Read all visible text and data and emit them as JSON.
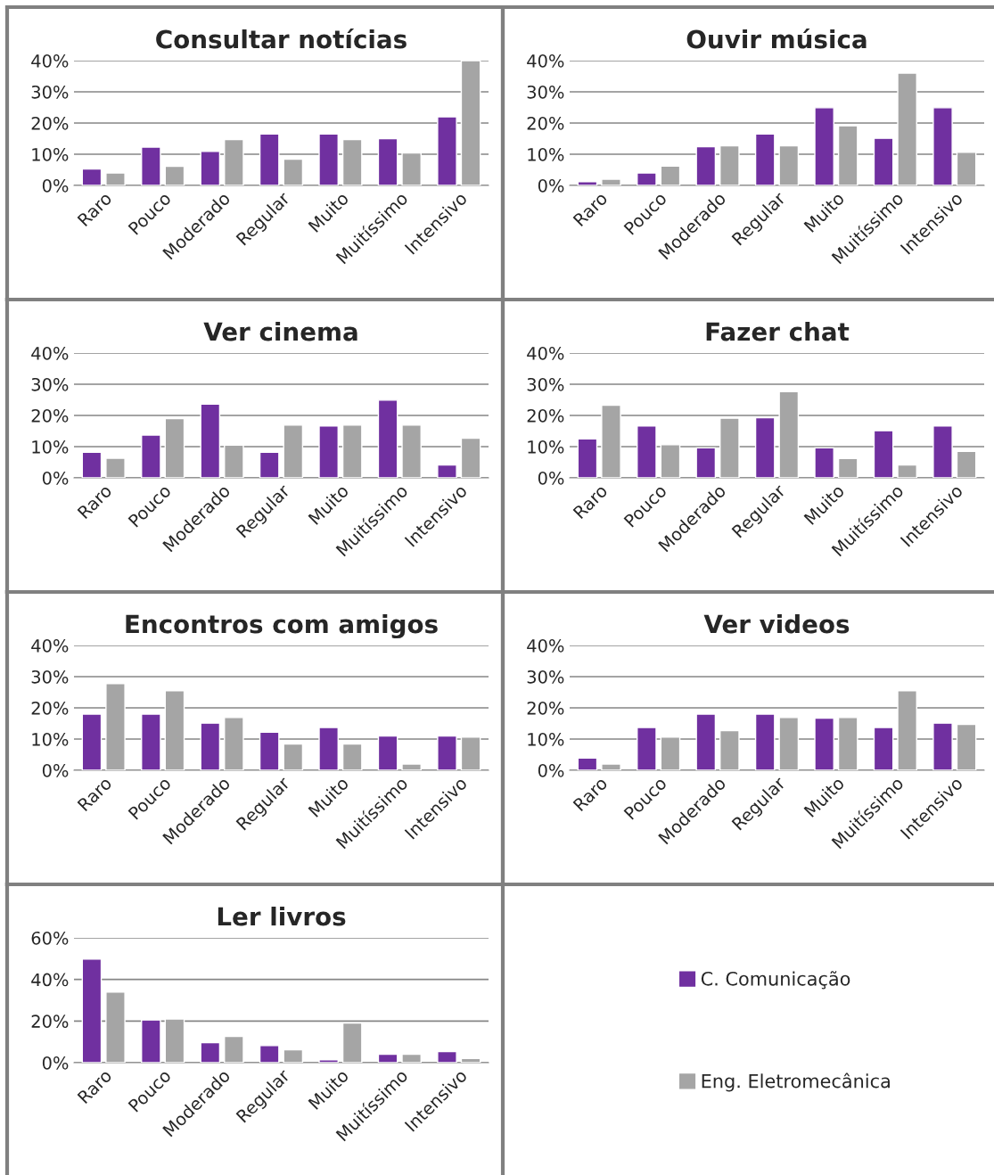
{
  "chart_data": [
    {
      "type": "bar",
      "title": "Consultar notícias",
      "categories": [
        "Raro",
        "Pouco",
        "Moderado",
        "Regular",
        "Muito",
        "Muitíssimo",
        "Intensivo"
      ],
      "ylim": [
        0,
        40
      ],
      "yticks": [
        {
          "value": 0,
          "label": "0%"
        },
        {
          "value": 10,
          "label": "10%"
        },
        {
          "value": 20,
          "label": "20%"
        },
        {
          "value": 30,
          "label": "30%"
        },
        {
          "value": 40,
          "label": "40%"
        }
      ],
      "grid": "y",
      "series": [
        {
          "color": "#7030a0",
          "values": [
            5.3,
            12.3,
            10.9,
            16.5,
            16.5,
            15,
            22
          ]
        },
        {
          "color": "#a5a5a5",
          "values": [
            4,
            6.1,
            14.7,
            8.4,
            14.7,
            10.4,
            40
          ]
        }
      ]
    },
    {
      "type": "bar",
      "title": "Ouvir música",
      "categories": [
        "Raro",
        "Pouco",
        "Moderado",
        "Regular",
        "Muito",
        "Muitíssimo",
        "Intensivo"
      ],
      "ylim": [
        0,
        40
      ],
      "yticks": [
        {
          "value": 0,
          "label": "0%"
        },
        {
          "value": 10,
          "label": "10%"
        },
        {
          "value": 20,
          "label": "20%"
        },
        {
          "value": 30,
          "label": "30%"
        },
        {
          "value": 40,
          "label": "40%"
        }
      ],
      "grid": "y",
      "series": [
        {
          "color": "#7030a0",
          "values": [
            1.2,
            4,
            12.4,
            16.5,
            24.9,
            15.1,
            24.9
          ]
        },
        {
          "color": "#a5a5a5",
          "values": [
            2,
            6.2,
            12.7,
            12.7,
            19.1,
            36,
            10.6
          ]
        }
      ]
    },
    {
      "type": "bar",
      "title": "Ver cinema",
      "categories": [
        "Raro",
        "Pouco",
        "Moderado",
        "Regular",
        "Muito",
        "Muitíssimo",
        "Intensivo"
      ],
      "ylim": [
        0,
        40
      ],
      "yticks": [
        {
          "value": 0,
          "label": "0%"
        },
        {
          "value": 10,
          "label": "10%"
        },
        {
          "value": 20,
          "label": "20%"
        },
        {
          "value": 30,
          "label": "30%"
        },
        {
          "value": 40,
          "label": "40%"
        }
      ],
      "grid": "y",
      "series": [
        {
          "color": "#7030a0",
          "values": [
            8.2,
            13.7,
            23.6,
            8.2,
            16.6,
            24.9,
            4.1
          ]
        },
        {
          "color": "#a5a5a5",
          "values": [
            6.3,
            19,
            10.5,
            16.9,
            16.9,
            16.9,
            12.7
          ]
        }
      ]
    },
    {
      "type": "bar",
      "title": "Fazer chat",
      "categories": [
        "Raro",
        "Pouco",
        "Moderado",
        "Regular",
        "Muito",
        "Muitíssimo",
        "Intensivo"
      ],
      "ylim": [
        0,
        40
      ],
      "yticks": [
        {
          "value": 0,
          "label": "0%"
        },
        {
          "value": 10,
          "label": "10%"
        },
        {
          "value": 20,
          "label": "20%"
        },
        {
          "value": 30,
          "label": "30%"
        },
        {
          "value": 40,
          "label": "40%"
        }
      ],
      "grid": "y",
      "series": [
        {
          "color": "#7030a0",
          "values": [
            12.5,
            16.6,
            9.6,
            19.3,
            9.6,
            15.1,
            16.6
          ]
        },
        {
          "color": "#a5a5a5",
          "values": [
            23.3,
            10.6,
            19.1,
            27.6,
            6.2,
            4.1,
            8.5
          ]
        }
      ]
    },
    {
      "type": "bar",
      "title": "Encontros com amigos",
      "categories": [
        "Raro",
        "Pouco",
        "Moderado",
        "Regular",
        "Muito",
        "Muitíssimo",
        "Intensivo"
      ],
      "ylim": [
        0,
        40
      ],
      "yticks": [
        {
          "value": 0,
          "label": "0%"
        },
        {
          "value": 10,
          "label": "10%"
        },
        {
          "value": 20,
          "label": "20%"
        },
        {
          "value": 30,
          "label": "30%"
        },
        {
          "value": 40,
          "label": "40%"
        }
      ],
      "grid": "y",
      "series": [
        {
          "color": "#7030a0",
          "values": [
            18,
            18,
            15.1,
            12.2,
            13.7,
            11,
            11
          ]
        },
        {
          "color": "#a5a5a5",
          "values": [
            27.8,
            25.5,
            16.9,
            8.4,
            8.4,
            2,
            10.6
          ]
        }
      ]
    },
    {
      "type": "bar",
      "title": "Ver videos",
      "categories": [
        "Raro",
        "Pouco",
        "Moderado",
        "Regular",
        "Muito",
        "Muitíssimo",
        "Intensivo"
      ],
      "ylim": [
        0,
        40
      ],
      "yticks": [
        {
          "value": 0,
          "label": "0%"
        },
        {
          "value": 10,
          "label": "10%"
        },
        {
          "value": 20,
          "label": "20%"
        },
        {
          "value": 30,
          "label": "30%"
        },
        {
          "value": 40,
          "label": "40%"
        }
      ],
      "grid": "y",
      "series": [
        {
          "color": "#7030a0",
          "values": [
            3.9,
            13.7,
            18,
            18,
            16.7,
            13.7,
            15.1
          ]
        },
        {
          "color": "#a5a5a5",
          "values": [
            2,
            10.6,
            12.7,
            16.9,
            16.9,
            25.5,
            14.7
          ]
        }
      ]
    },
    {
      "type": "bar",
      "title": "Ler livros",
      "categories": [
        "Raro",
        "Pouco",
        "Moderado",
        "Regular",
        "Muito",
        "Muitíssimo",
        "Intensivo"
      ],
      "ylim": [
        0,
        60
      ],
      "yticks": [
        {
          "value": 0,
          "label": "0%"
        },
        {
          "value": 20,
          "label": "20%"
        },
        {
          "value": 40,
          "label": "40%"
        },
        {
          "value": 60,
          "label": "60%"
        }
      ],
      "grid": "y",
      "legend": "right",
      "series": [
        {
          "name": "C. Comunicação",
          "color": "#7030a0",
          "values": [
            49.8,
            20.5,
            9.6,
            8.2,
            1.4,
            4,
            5.3
          ]
        },
        {
          "name": "Eng. Eletromecânica",
          "color": "#a5a5a5",
          "values": [
            33.9,
            21,
            12.6,
            6.2,
            19,
            4.1,
            2
          ]
        }
      ]
    }
  ]
}
